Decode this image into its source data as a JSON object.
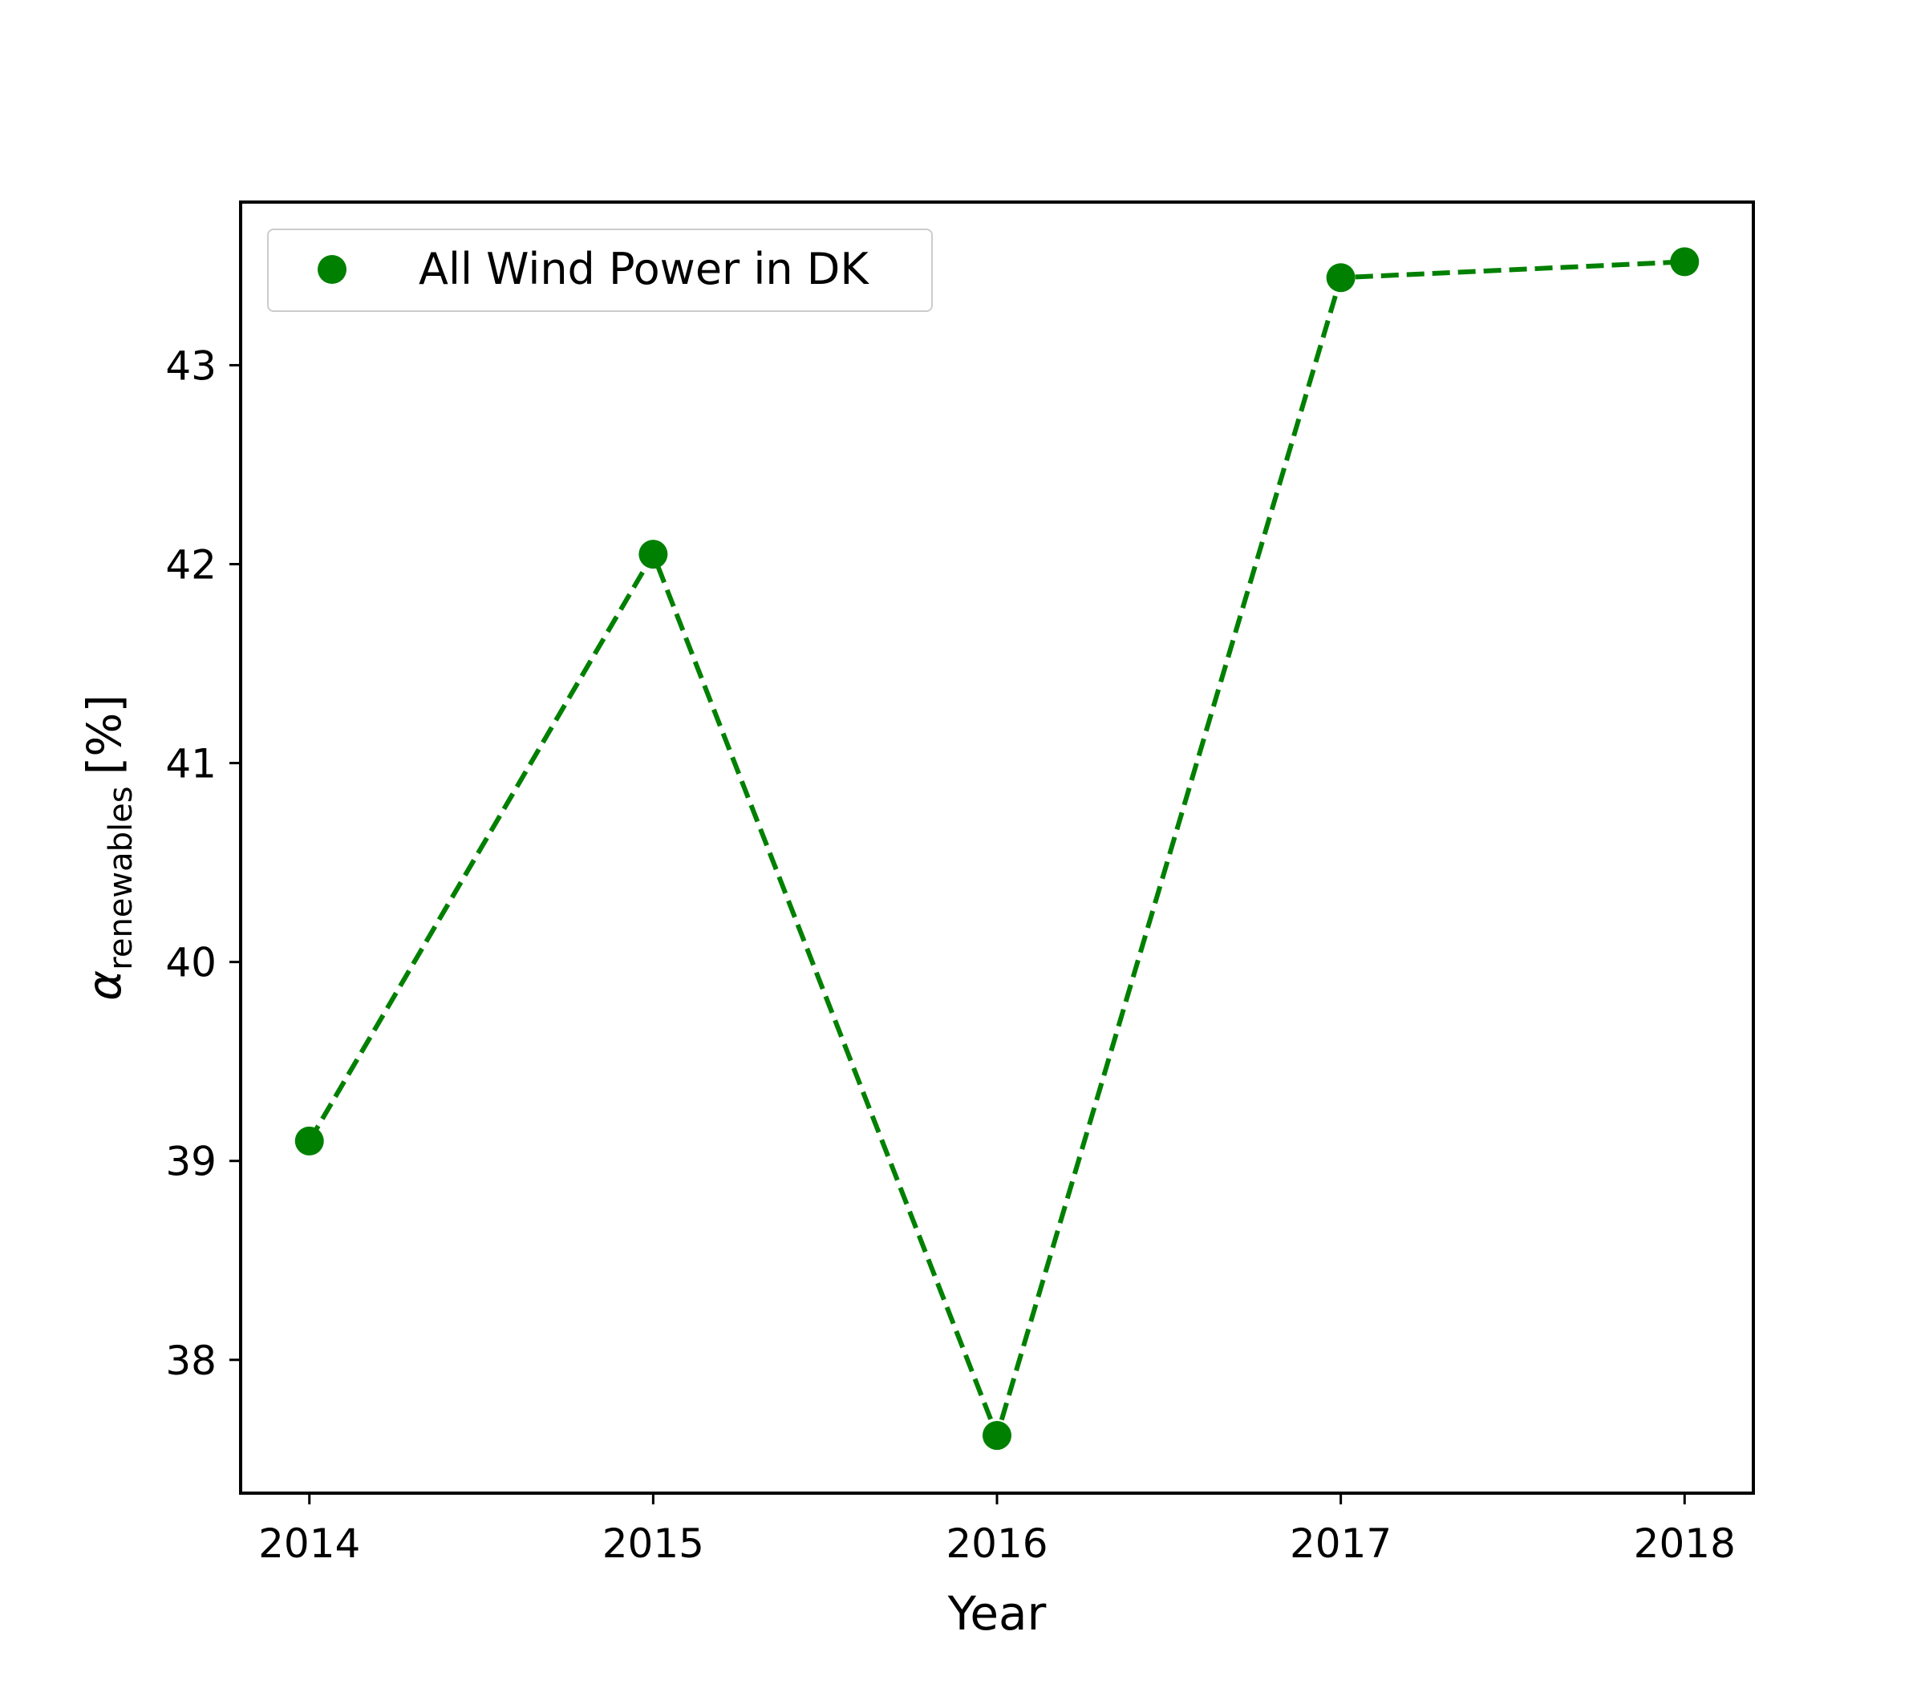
{
  "chart_data": {
    "type": "line",
    "x": [
      2014,
      2015,
      2016,
      2017,
      2018
    ],
    "series": [
      {
        "name": "All Wind Power in DK",
        "values": [
          39.1,
          42.05,
          37.62,
          43.44,
          43.52
        ],
        "color": "#008000",
        "line_style": "dashed",
        "marker": "circle"
      }
    ],
    "xlabel": "Year",
    "ylabel": {
      "symbol": "α",
      "subscript": "renewables",
      "unit": "[%]"
    },
    "xticks": [
      "2014",
      "2015",
      "2016",
      "2017",
      "2018"
    ],
    "yticks": [
      "38",
      "39",
      "40",
      "41",
      "42",
      "43"
    ],
    "xlim": [
      2013.8,
      2018.2
    ],
    "ylim": [
      37.33,
      43.82
    ],
    "grid": false,
    "legend_position": "upper-left"
  }
}
